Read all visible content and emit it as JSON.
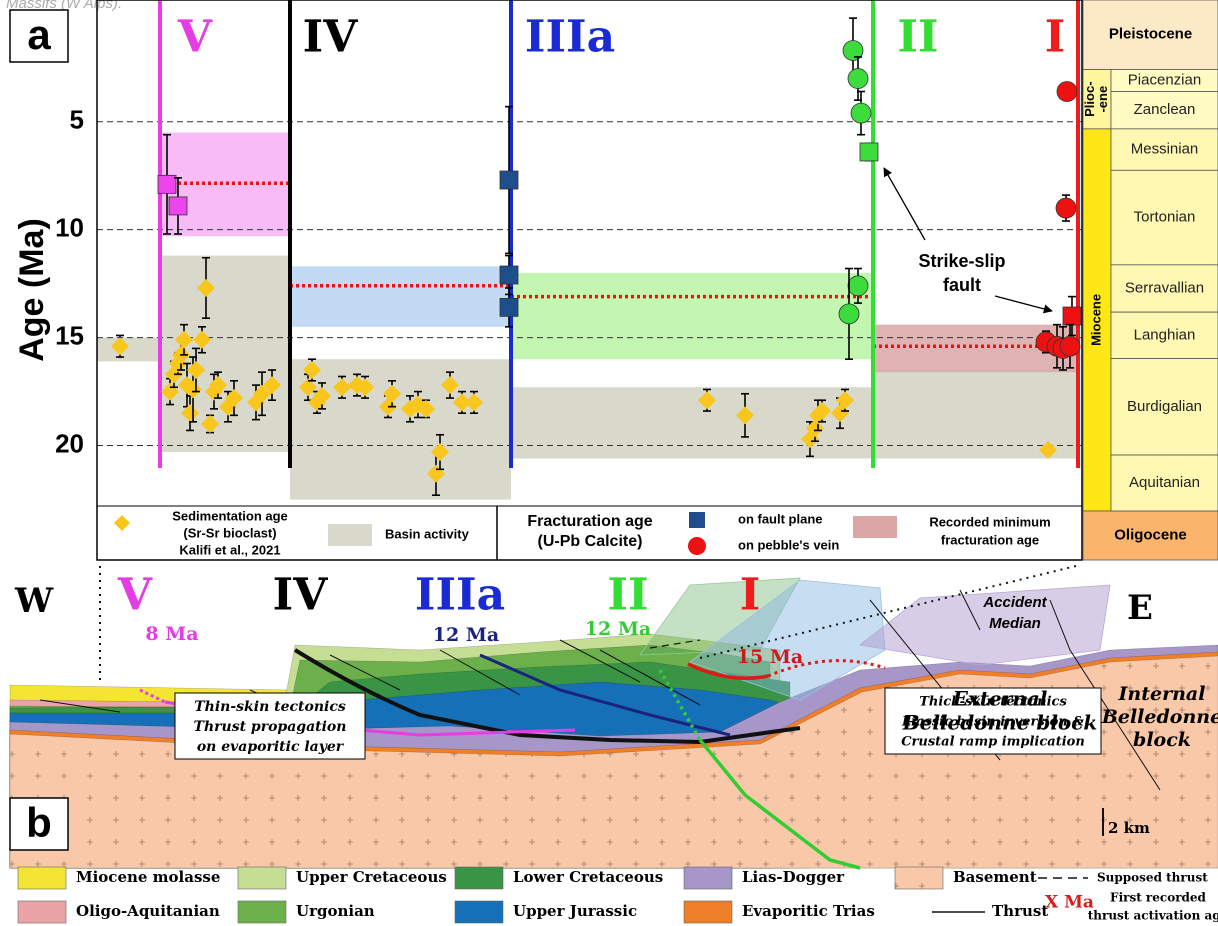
{
  "caption_fragment": "Massifs (W Alps).",
  "chart_data": {
    "type": "age-scatter",
    "panel_label": "a",
    "y_label": "Age (Ma)",
    "ylim": [
      -0.5,
      22.8
    ],
    "yticks": [
      5,
      10,
      15,
      20
    ],
    "grid": true,
    "y_inverted": true,
    "massifs": [
      {
        "name": "V",
        "color": "#e63ce6"
      },
      {
        "name": "IV",
        "color": "#000000"
      },
      {
        "name": "IIIa",
        "color": "#1a2bd6"
      },
      {
        "name": "II",
        "color": "#33dd33"
      },
      {
        "name": "I",
        "color": "#ee1c1c"
      }
    ],
    "sediment_color": "#f9c61c",
    "basin_color": "#d8d9cb",
    "mean_color": "#ee1111",
    "groups": [
      {
        "basin": [
          15.0,
          16.1
        ],
        "sediment": {
          "values": [
            15.4
          ],
          "errors": [
            0.5
          ]
        }
      },
      {
        "basin": [
          11.2,
          20.3
        ],
        "fracture_band": [
          5.5,
          10.3
        ],
        "fracture_mean": 7.85,
        "band_color": "#f6b0f4",
        "marker_color": "#ee44ee",
        "sediment": {
          "values": [
            17.5,
            16.7,
            16.2,
            15.8,
            15.1,
            17.2,
            18.5,
            17.4,
            16.5,
            15.1,
            12.7,
            19.0,
            17.5,
            17.2,
            18.2,
            17.8,
            18.0,
            17.6,
            17.2
          ],
          "errors": [
            0.6,
            0.6,
            0.5,
            0.7,
            0.7,
            1.0,
            0.8,
            1.5,
            1.0,
            0.6,
            1.4,
            0.4,
            0.8,
            0.6,
            0.7,
            0.8,
            0.8,
            1.0,
            0.7
          ]
        },
        "fracture": {
          "values": [
            7.9,
            8.9
          ],
          "errors": [
            2.3,
            1.3
          ],
          "markers": [
            "square",
            "square"
          ]
        }
      },
      {
        "basin": [
          16.0,
          22.5
        ],
        "fracture_band": [
          11.7,
          14.5
        ],
        "fracture_mean": 12.6,
        "band_color": "#b7d3f2",
        "marker_color": "#1f4e8c",
        "sediment": {
          "values": [
            17.3,
            16.5,
            18.0,
            17.7,
            17.3,
            17.2,
            17.3,
            18.2,
            17.6,
            18.3,
            18.1,
            18.3,
            21.3,
            20.3,
            17.2,
            18.0,
            18.0
          ],
          "errors": [
            0.6,
            0.5,
            0.5,
            0.6,
            0.5,
            0.5,
            0.5,
            0.5,
            0.6,
            0.6,
            0.6,
            0.4,
            1.0,
            0.8,
            0.6,
            0.5,
            0.5
          ]
        },
        "fracture": {
          "values": [
            7.7,
            12.1,
            13.6
          ],
          "errors": [
            3.4,
            0.9,
            0.9
          ],
          "markers": [
            "square",
            "square",
            "square"
          ]
        }
      },
      {
        "basin": [
          17.3,
          20.6
        ],
        "fracture_band": [
          12.0,
          16.0
        ],
        "fracture_mean": 13.1,
        "band_color": "#b9f5a2",
        "marker_color": "#3ddc3d",
        "sediment": {
          "values": [
            17.9,
            18.6,
            19.7,
            19.2,
            18.6,
            18.4,
            18.5,
            17.9
          ],
          "errors": [
            0.5,
            1.0,
            0.8,
            0.6,
            0.7,
            0.5,
            0.7,
            0.5
          ]
        },
        "fracture": {
          "values": [
            1.7,
            3.0,
            4.6,
            6.4,
            12.6,
            13.9
          ],
          "errors": [
            1.5,
            1.0,
            1.0,
            0.4,
            0.8,
            2.1
          ],
          "markers": [
            "circle",
            "circle",
            "circle",
            "square",
            "circle",
            "circle"
          ]
        }
      },
      {
        "basin": [
          16.5,
          20.6
        ],
        "fracture_band": [
          14.4,
          16.6
        ],
        "fracture_mean": 15.4,
        "band_color": "#dba6a6",
        "marker_color": "#ee1111",
        "sediment": {
          "values": [
            20.2
          ],
          "errors": [
            0.2
          ]
        },
        "fracture": {
          "values": [
            3.6,
            9.0,
            14.0,
            15.2,
            15.4,
            15.5,
            15.4
          ],
          "errors": [
            0.2,
            0.6,
            0.9,
            0.5,
            1.0,
            1.0,
            1.0
          ],
          "markers": [
            "circle",
            "circle",
            "square",
            "circle",
            "circle",
            "circle",
            "circle"
          ]
        }
      }
    ],
    "annotation": [
      "Strike-slip",
      "fault"
    ],
    "legend": {
      "sediment": [
        "Sedimentation age",
        "(Sr-Sr bioclast)",
        "Kalifi et al., 2021"
      ],
      "basin": "Basin activity",
      "fracture_title": [
        "Fracturation age",
        "(U-Pb Calcite)"
      ],
      "fault_plane": "on fault plane",
      "pebble_vein": "on pebble's vein",
      "minimum": [
        "Recorded minimum",
        "fracturation age"
      ],
      "fault_plane_color": "#1f4e8c",
      "pebble_color": "#ee1111",
      "minimum_color": "#dba6a6"
    }
  },
  "timescale": {
    "epochs": [
      {
        "name": [
          "Pleistocene"
        ],
        "range": [
          0,
          2.58
        ],
        "color": "#fce9c6"
      },
      {
        "name": [
          "Plioc-",
          "-ene"
        ],
        "range": [
          2.58,
          5.33
        ],
        "color": "#fff59c"
      },
      {
        "name": [
          "Miocene"
        ],
        "range": [
          5.33,
          23.03
        ],
        "color": "#ffe617"
      },
      {
        "name": [
          "Oligocene"
        ],
        "range": [
          23.03
        ],
        "color": "#fbb46c"
      }
    ],
    "stages": [
      {
        "name": "Piacenzian",
        "range": [
          2.58,
          3.6
        ],
        "color": "#fffbc2"
      },
      {
        "name": "Zanclean",
        "range": [
          3.6,
          5.33
        ],
        "color": "#fffbc2"
      },
      {
        "name": "Messinian",
        "range": [
          5.33,
          7.25
        ],
        "color": "#fff8b2"
      },
      {
        "name": "Tortonian",
        "range": [
          7.25,
          11.63
        ],
        "color": "#fff8b2"
      },
      {
        "name": "Serravallian",
        "range": [
          11.63,
          13.82
        ],
        "color": "#fff8b2"
      },
      {
        "name": "Langhian",
        "range": [
          13.82,
          15.97
        ],
        "color": "#fff8b2"
      },
      {
        "name": "Burdigalian",
        "range": [
          15.97,
          20.44
        ],
        "color": "#fff8b2"
      },
      {
        "name": "Aquitanian",
        "range": [
          20.44,
          23.03
        ],
        "color": "#fff8b2"
      }
    ]
  },
  "section": {
    "panel_label": "b",
    "west": "W",
    "east": "E",
    "thrust_ages": [
      {
        "label": "8 Ma",
        "color": "#e63ce6"
      },
      {
        "label": "12 Ma",
        "color": "#1a237e"
      },
      {
        "label": "12 Ma",
        "color": "#33cc33"
      },
      {
        "label": "15 Ma",
        "color": "#cc1a1a"
      }
    ],
    "accident": [
      "Accident",
      "Median"
    ],
    "external": [
      "External",
      "Belledonne block"
    ],
    "internal": [
      "Internal",
      "Belledonne",
      "block"
    ],
    "thin_skin": [
      "Thin-skin tectonics",
      "Thrust propagation",
      "on evaporitic layer"
    ],
    "thick_skin": [
      "Thick-skin tectonics",
      "Liassic basin inversion &",
      "Crustal ramp implication"
    ],
    "scale": "2 km",
    "legend": [
      {
        "label": "Miocene molasse",
        "color": "#f3e532"
      },
      {
        "label": "Oligo-Aquitanian",
        "color": "#eba4a6"
      },
      {
        "label": "Upper Cretaceous",
        "color": "#c5de94"
      },
      {
        "label": "Urgonian",
        "color": "#6cb04c"
      },
      {
        "label": "Lower Cretaceous",
        "color": "#3a9446"
      },
      {
        "label": "Upper Jurassic",
        "color": "#1670b8"
      },
      {
        "label": "Lias-Dogger",
        "color": "#a796c8"
      },
      {
        "label": "Evaporitic Trias",
        "color": "#f07f2a"
      },
      {
        "label": "Basement",
        "color": "#f8c8a8"
      }
    ],
    "supposed_thrust": "Supposed thrust",
    "thrust": "Thrust",
    "first_recorded_symbol": "X Ma",
    "first_recorded": [
      "First recorded",
      "thrust activation age"
    ]
  }
}
